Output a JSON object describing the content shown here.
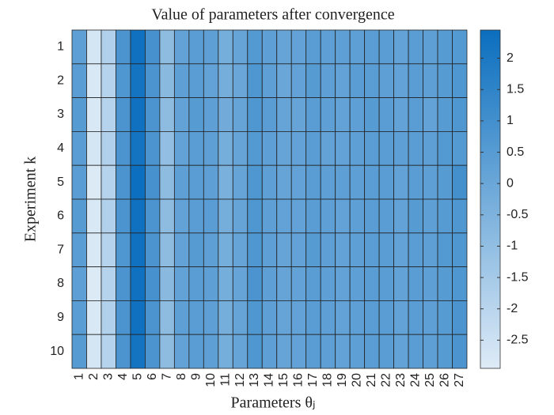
{
  "chart_data": {
    "type": "heatmap",
    "title": "Value of parameters after convergence",
    "xlabel": "Parameters θⱼ",
    "ylabel": "Experiment k",
    "x": [
      "1",
      "2",
      "3",
      "4",
      "5",
      "6",
      "7",
      "8",
      "9",
      "10",
      "11",
      "12",
      "13",
      "14",
      "15",
      "16",
      "17",
      "18",
      "19",
      "20",
      "21",
      "22",
      "23",
      "24",
      "25",
      "26",
      "27"
    ],
    "y": [
      "1",
      "2",
      "3",
      "4",
      "5",
      "6",
      "7",
      "8",
      "9",
      "10"
    ],
    "z": [
      [
        0.3,
        -2.7,
        -1.8,
        0.8,
        2.3,
        0.9,
        -0.9,
        0.2,
        0.4,
        0.3,
        -0.3,
        0.1,
        0.6,
        0.3,
        0.1,
        0.2,
        0.4,
        0.3,
        0.3,
        0.3,
        0.4,
        0.4,
        0.2,
        0.4,
        0.3,
        0.5,
        0.6
      ],
      [
        0.4,
        -2.8,
        -1.9,
        0.7,
        2.2,
        0.8,
        -0.8,
        0.3,
        0.4,
        0.2,
        -0.3,
        0.0,
        0.7,
        0.3,
        0.0,
        0.2,
        0.5,
        0.3,
        0.2,
        0.4,
        0.4,
        0.3,
        0.2,
        0.4,
        0.3,
        0.5,
        0.7
      ],
      [
        0.5,
        -2.8,
        -1.9,
        0.8,
        2.3,
        0.8,
        -0.9,
        0.2,
        0.5,
        0.3,
        -0.2,
        0.1,
        0.7,
        0.4,
        0.1,
        0.1,
        0.4,
        0.3,
        0.2,
        0.3,
        0.5,
        0.4,
        0.2,
        0.4,
        0.2,
        0.5,
        0.7
      ],
      [
        0.4,
        -2.7,
        -1.8,
        0.8,
        2.2,
        0.8,
        -1.0,
        0.2,
        0.4,
        0.3,
        -0.3,
        0.1,
        0.6,
        0.3,
        0.1,
        0.2,
        0.4,
        0.2,
        0.2,
        0.3,
        0.4,
        0.4,
        0.3,
        0.4,
        0.3,
        0.6,
        0.6
      ],
      [
        0.4,
        -2.9,
        -1.9,
        0.8,
        2.4,
        0.9,
        -0.9,
        0.3,
        0.4,
        0.3,
        -0.4,
        0.1,
        0.7,
        0.3,
        0.1,
        0.2,
        0.4,
        0.3,
        0.3,
        0.3,
        0.4,
        0.4,
        0.2,
        0.4,
        0.3,
        0.5,
        1.0
      ],
      [
        0.5,
        -2.8,
        -1.8,
        0.8,
        2.3,
        0.8,
        -0.9,
        0.2,
        0.4,
        0.4,
        -0.3,
        0.1,
        0.7,
        0.3,
        0.2,
        0.2,
        0.4,
        0.3,
        0.2,
        0.3,
        0.4,
        0.4,
        0.2,
        0.5,
        0.3,
        0.5,
        0.7
      ],
      [
        0.4,
        -2.8,
        -1.9,
        0.7,
        2.3,
        0.8,
        -0.9,
        0.2,
        0.5,
        0.3,
        -0.3,
        0.1,
        0.7,
        0.3,
        0.1,
        0.2,
        0.5,
        0.3,
        0.2,
        0.3,
        0.4,
        0.4,
        0.2,
        0.4,
        0.3,
        0.6,
        0.7
      ],
      [
        0.3,
        -2.9,
        -1.9,
        0.8,
        2.3,
        0.9,
        -0.8,
        0.2,
        0.4,
        0.3,
        -0.3,
        0.1,
        0.8,
        0.3,
        0.1,
        0.2,
        0.4,
        0.3,
        0.2,
        0.3,
        0.4,
        0.4,
        0.2,
        0.4,
        0.3,
        0.5,
        0.7
      ],
      [
        0.4,
        -2.8,
        -1.8,
        0.8,
        2.3,
        0.8,
        -0.9,
        0.3,
        0.4,
        0.3,
        -0.3,
        0.1,
        0.7,
        0.3,
        0.1,
        0.2,
        0.4,
        0.3,
        0.2,
        0.3,
        0.4,
        0.4,
        0.2,
        0.4,
        0.3,
        0.5,
        0.8
      ],
      [
        0.5,
        -2.7,
        -1.9,
        0.8,
        2.2,
        0.8,
        -0.9,
        0.2,
        0.4,
        0.3,
        -0.3,
        0.1,
        0.7,
        0.3,
        0.1,
        0.2,
        0.4,
        0.3,
        0.2,
        0.3,
        0.4,
        0.4,
        0.2,
        0.4,
        0.3,
        0.5,
        0.8
      ]
    ],
    "colormap": [
      "#deebf7",
      "#0a6ebe"
    ],
    "clim": [
      -2.95,
      2.45
    ],
    "cticks": [
      -2.5,
      -2,
      -1.5,
      -1,
      -0.5,
      0,
      0.5,
      1,
      1.5,
      2
    ]
  }
}
